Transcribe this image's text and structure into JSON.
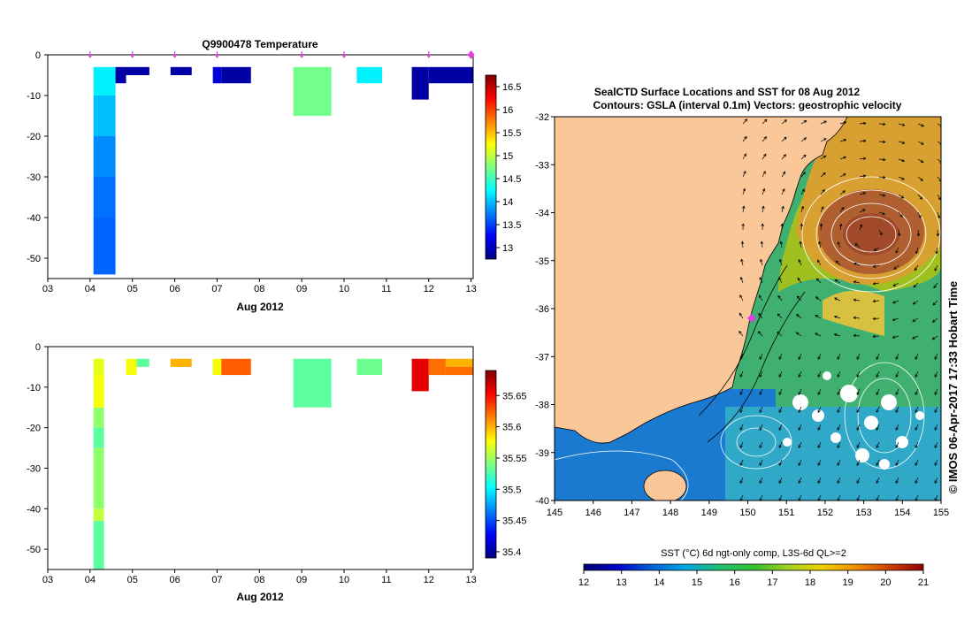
{
  "chart_data": [
    {
      "type": "heatmap",
      "panel": "temperature",
      "title": "Q9900478  Temperature",
      "xlabel": "Aug 2012",
      "x_ticks": [
        "03",
        "04",
        "05",
        "06",
        "07",
        "08",
        "09",
        "10",
        "11",
        "12",
        "13"
      ],
      "x_range": [
        3,
        13.05
      ],
      "y_ticks": [
        0,
        -10,
        -20,
        -30,
        -40,
        -50
      ],
      "y_range": [
        0,
        -55
      ],
      "profile_markers": [
        4.0,
        5.0,
        6.0,
        7.0,
        9.0,
        10.0,
        12.0
      ],
      "current_marker": 13.0,
      "colorbar_ticks": [
        16.5,
        16,
        15.5,
        15,
        14.5,
        14,
        13.5,
        13
      ],
      "colorbar_range": [
        12.75,
        16.75
      ],
      "cells": [
        {
          "x0": 4.08,
          "x1": 4.6,
          "y0": -3,
          "y1": -10,
          "v": 14.2
        },
        {
          "x0": 4.08,
          "x1": 4.6,
          "y0": -10,
          "y1": -20,
          "v": 14.0
        },
        {
          "x0": 4.08,
          "x1": 4.6,
          "y0": -20,
          "y1": -30,
          "v": 13.8
        },
        {
          "x0": 4.08,
          "x1": 4.6,
          "y0": -30,
          "y1": -40,
          "v": 13.7
        },
        {
          "x0": 4.08,
          "x1": 4.6,
          "y0": -40,
          "y1": -54,
          "v": 13.65
        },
        {
          "x0": 4.6,
          "x1": 5.4,
          "y0": -3,
          "y1": -5,
          "v": 12.9
        },
        {
          "x0": 4.6,
          "x1": 4.85,
          "y0": -5,
          "y1": -7,
          "v": 12.9
        },
        {
          "x0": 5.9,
          "x1": 6.4,
          "y0": -3,
          "y1": -5,
          "v": 12.9
        },
        {
          "x0": 6.9,
          "x1": 7.1,
          "y0": -3,
          "y1": -7,
          "v": 13.1
        },
        {
          "x0": 7.1,
          "x1": 7.8,
          "y0": -3,
          "y1": -7,
          "v": 12.9
        },
        {
          "x0": 8.8,
          "x1": 9.7,
          "y0": -3,
          "y1": -15,
          "v": 14.7
        },
        {
          "x0": 10.3,
          "x1": 10.9,
          "y0": -3,
          "y1": -7,
          "v": 14.2
        },
        {
          "x0": 11.6,
          "x1": 12.0,
          "y0": -3,
          "y1": -11,
          "v": 12.9
        },
        {
          "x0": 12.0,
          "x1": 13.05,
          "y0": -3,
          "y1": -7,
          "v": 12.9
        }
      ]
    },
    {
      "type": "heatmap",
      "panel": "salinity",
      "title": "",
      "xlabel": "Aug 2012",
      "x_ticks": [
        "03",
        "04",
        "05",
        "06",
        "07",
        "08",
        "09",
        "10",
        "11",
        "12",
        "13"
      ],
      "x_range": [
        3,
        13.05
      ],
      "y_ticks": [
        0,
        -10,
        -20,
        -30,
        -40,
        -50
      ],
      "y_range": [
        0,
        -55
      ],
      "colorbar_ticks": [
        35.65,
        35.6,
        35.55,
        35.5,
        35.45,
        35.4
      ],
      "colorbar_range": [
        35.39,
        35.69
      ],
      "cells": [
        {
          "x0": 4.08,
          "x1": 4.33,
          "y0": -3,
          "y1": -7,
          "v": 35.57
        },
        {
          "x0": 4.08,
          "x1": 4.33,
          "y0": -7,
          "y1": -15,
          "v": 35.575
        },
        {
          "x0": 4.08,
          "x1": 4.33,
          "y0": -15,
          "y1": -20,
          "v": 35.545
        },
        {
          "x0": 4.08,
          "x1": 4.33,
          "y0": -20,
          "y1": -25,
          "v": 35.53
        },
        {
          "x0": 4.08,
          "x1": 4.33,
          "y0": -25,
          "y1": -40,
          "v": 35.545
        },
        {
          "x0": 4.08,
          "x1": 4.33,
          "y0": -40,
          "y1": -43,
          "v": 35.56
        },
        {
          "x0": 4.08,
          "x1": 4.33,
          "y0": -43,
          "y1": -55,
          "v": 35.53
        },
        {
          "x0": 4.85,
          "x1": 5.1,
          "y0": -3,
          "y1": -7,
          "v": 35.575
        },
        {
          "x0": 5.1,
          "x1": 5.4,
          "y0": -3,
          "y1": -5,
          "v": 35.53
        },
        {
          "x0": 5.9,
          "x1": 6.4,
          "y0": -3,
          "y1": -5,
          "v": 35.6
        },
        {
          "x0": 6.9,
          "x1": 7.1,
          "y0": -3,
          "y1": -7,
          "v": 35.575
        },
        {
          "x0": 7.1,
          "x1": 7.8,
          "y0": -3,
          "y1": -7,
          "v": 35.625
        },
        {
          "x0": 8.8,
          "x1": 9.7,
          "y0": -3,
          "y1": -15,
          "v": 35.53
        },
        {
          "x0": 10.3,
          "x1": 10.9,
          "y0": -3,
          "y1": -7,
          "v": 35.535
        },
        {
          "x0": 11.6,
          "x1": 12.0,
          "y0": -3,
          "y1": -11,
          "v": 35.66
        },
        {
          "x0": 12.0,
          "x1": 12.4,
          "y0": -3,
          "y1": -7,
          "v": 35.62
        },
        {
          "x0": 12.4,
          "x1": 13.05,
          "y0": -3,
          "y1": -5,
          "v": 35.6
        },
        {
          "x0": 12.4,
          "x1": 13.05,
          "y0": -5,
          "y1": -7,
          "v": 35.62
        }
      ]
    },
    {
      "type": "map",
      "panel": "sst_map",
      "title_line1": "SealCTD Surface Locations and SST for 08 Aug 2012",
      "title_line2": "Contours: GSLA (interval 0.1m) Vectors: geostrophic velocity",
      "x_ticks": [
        "145",
        "146",
        "147",
        "148",
        "149",
        "150",
        "151",
        "152",
        "153",
        "154",
        "155"
      ],
      "x_range": [
        145,
        155
      ],
      "y_ticks": [
        "-32",
        "-33",
        "-34",
        "-35",
        "-36",
        "-37",
        "-38",
        "-39",
        "-40"
      ],
      "y_range": [
        -32,
        -40
      ],
      "seal_location": {
        "lon": 150.1,
        "lat": -36.2
      },
      "side_label": "© IMOS 06-Apr-2017 17:33 Hobart Time",
      "colorbar_label": "SST (°C) 6d ngt-only comp, L3S-6d QL>=2",
      "colorbar_ticks": [
        "12",
        "13",
        "14",
        "15",
        "16",
        "17",
        "18",
        "19",
        "20",
        "21"
      ],
      "colorbar_range": [
        12,
        21
      ]
    }
  ],
  "colors": {
    "land": "#fac898",
    "marker": "#e040e0",
    "jet": [
      "#00007f",
      "#0000ff",
      "#007fff",
      "#00ffff",
      "#7fff7f",
      "#ffff00",
      "#ff7f00",
      "#ff0000",
      "#7f0000"
    ],
    "sst_ramp": [
      "#000070",
      "#0000cc",
      "#0060d8",
      "#00a8e0",
      "#20c070",
      "#30c030",
      "#a0d020",
      "#f0d000",
      "#f09000",
      "#d04000",
      "#900000"
    ]
  }
}
